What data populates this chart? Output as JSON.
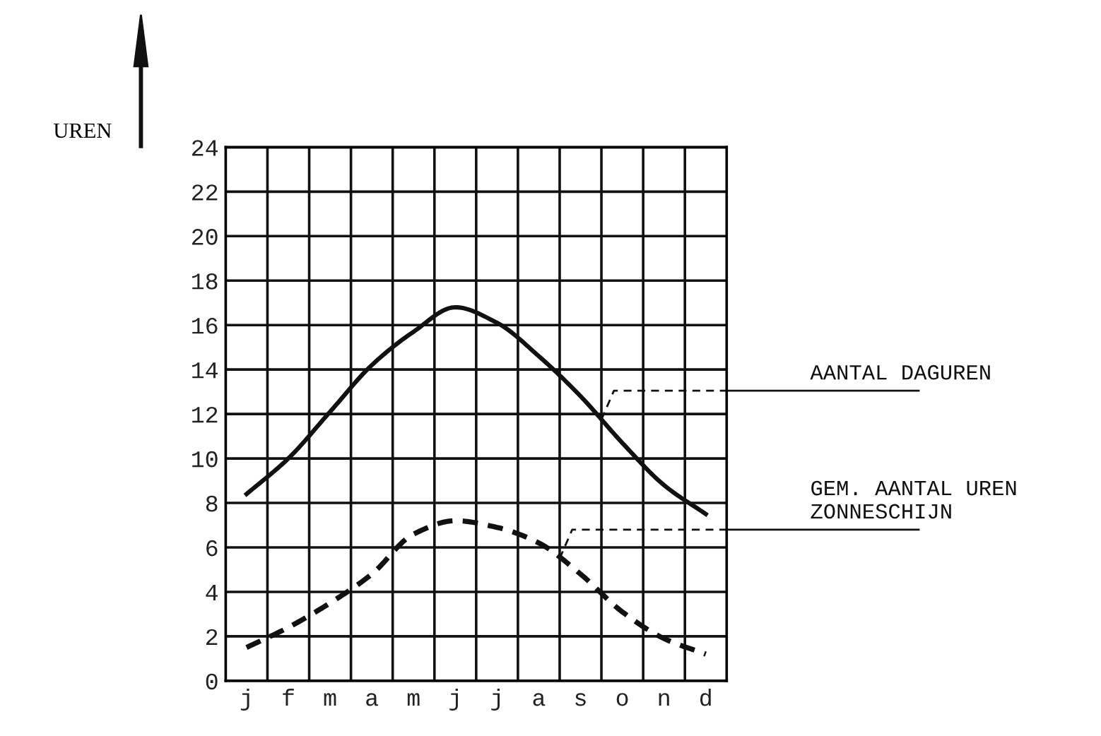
{
  "chart_data": {
    "type": "line",
    "ylabel": "UREN",
    "categories": [
      "j",
      "f",
      "m",
      "a",
      "m",
      "j",
      "j",
      "a",
      "s",
      "o",
      "n",
      "d"
    ],
    "ylim": [
      0,
      24
    ],
    "yticks": [
      0,
      2,
      4,
      6,
      8,
      10,
      12,
      14,
      16,
      18,
      20,
      22,
      24
    ],
    "grid": true,
    "marker": "none",
    "series": [
      {
        "name": "AANTAL DAGUREN",
        "color": "#111111",
        "line_style": "solid",
        "values": [
          8.4,
          10.0,
          12.1,
          14.2,
          15.7,
          16.8,
          16.1,
          14.6,
          12.8,
          10.7,
          8.8,
          7.5
        ]
      },
      {
        "name": "GEM. AANTAL UREN\nZONNESCHIJN",
        "color": "#111111",
        "line_style": "dashed",
        "values": [
          1.5,
          2.4,
          3.5,
          4.8,
          6.6,
          7.2,
          6.9,
          6.2,
          4.8,
          3.1,
          1.9,
          1.2
        ]
      }
    ]
  }
}
